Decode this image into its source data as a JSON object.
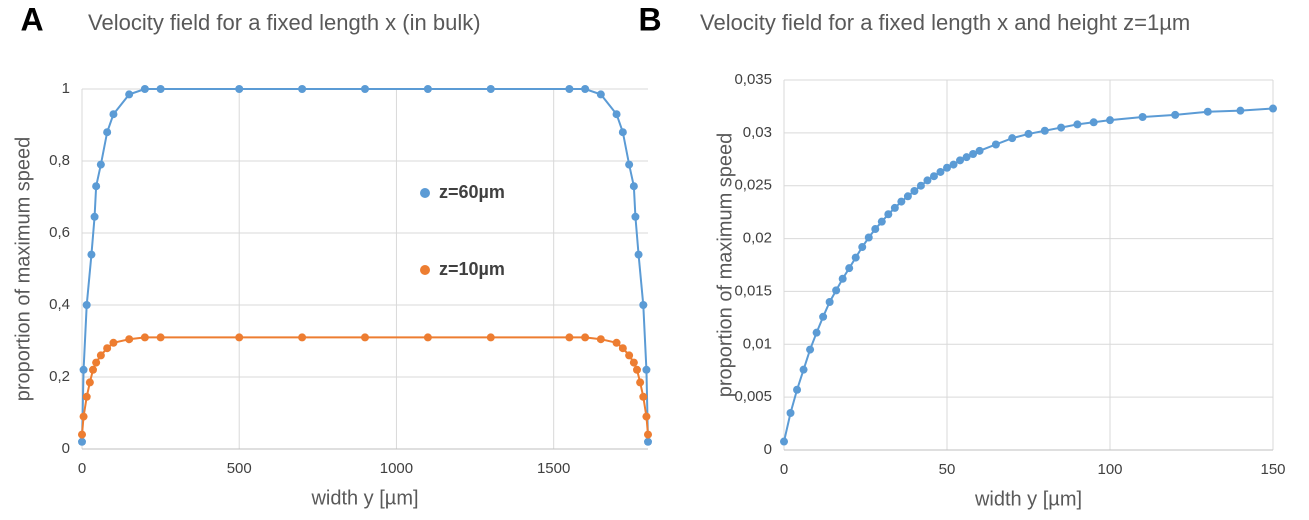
{
  "chart_data": [
    {
      "type": "line",
      "panel": "A",
      "title": "Velocity field for a fixed length x (in bulk)",
      "x_label": "width y [µm]",
      "y_label": "proportion of maximum speed",
      "xlim": [
        0,
        1800
      ],
      "xticks": [
        0,
        500,
        1000,
        1500
      ],
      "ylim": [
        0,
        1
      ],
      "yticks": [
        0,
        {
          "value": 0.2,
          "label": "0,2"
        },
        {
          "value": 0.4,
          "label": "0,4"
        },
        {
          "value": 0.6,
          "label": "0,6"
        },
        {
          "value": 0.8,
          "label": "0,8"
        },
        1
      ],
      "grid": true,
      "series": [
        {
          "name": "z=60µm",
          "color": "#5b9bd5",
          "x": [
            0,
            5,
            15,
            30,
            40,
            45,
            60,
            80,
            100,
            150,
            200,
            250,
            500,
            700,
            900,
            1100,
            1300,
            1550,
            1600,
            1650,
            1700,
            1720,
            1740,
            1755,
            1760,
            1770,
            1785,
            1795,
            1800
          ],
          "values": [
            0.02,
            0.22,
            0.4,
            0.54,
            0.645,
            0.73,
            0.79,
            0.88,
            0.93,
            0.985,
            1.0,
            1.0,
            1.0,
            1.0,
            1.0,
            1.0,
            1.0,
            1.0,
            1.0,
            0.985,
            0.93,
            0.88,
            0.79,
            0.73,
            0.645,
            0.54,
            0.4,
            0.22,
            0.02
          ]
        },
        {
          "name": "z=10µm",
          "color": "#ed7d31",
          "x": [
            0,
            5,
            15,
            25,
            35,
            45,
            60,
            80,
            100,
            150,
            200,
            250,
            500,
            700,
            900,
            1100,
            1300,
            1550,
            1600,
            1650,
            1700,
            1720,
            1740,
            1755,
            1765,
            1775,
            1785,
            1795,
            1800
          ],
          "values": [
            0.04,
            0.09,
            0.145,
            0.185,
            0.22,
            0.24,
            0.26,
            0.28,
            0.295,
            0.305,
            0.31,
            0.31,
            0.31,
            0.31,
            0.31,
            0.31,
            0.31,
            0.31,
            0.31,
            0.305,
            0.295,
            0.28,
            0.26,
            0.24,
            0.22,
            0.185,
            0.145,
            0.09,
            0.04
          ]
        }
      ]
    },
    {
      "type": "line",
      "panel": "B",
      "title": "Velocity field for a fixed length x and height z=1µm",
      "x_label": "width y [µm]",
      "y_label": "proportion of maximum speed",
      "xlim": [
        0,
        150
      ],
      "xticks": [
        0,
        50,
        100,
        150
      ],
      "ylim": [
        0,
        0.035
      ],
      "yticks": [
        0,
        {
          "value": 0.005,
          "label": "0,005"
        },
        {
          "value": 0.01,
          "label": "0,01"
        },
        {
          "value": 0.015,
          "label": "0,015"
        },
        {
          "value": 0.02,
          "label": "0,02"
        },
        {
          "value": 0.025,
          "label": "0,025"
        },
        {
          "value": 0.03,
          "label": "0,03"
        },
        {
          "value": 0.035,
          "label": "0,035"
        }
      ],
      "grid": true,
      "series": [
        {
          "color": "#5b9bd5",
          "x": [
            0,
            2,
            4,
            6,
            8,
            10,
            12,
            14,
            16,
            18,
            20,
            22,
            24,
            26,
            28,
            30,
            32,
            34,
            36,
            38,
            40,
            42,
            44,
            46,
            48,
            50,
            52,
            54,
            56,
            58,
            60,
            65,
            70,
            75,
            80,
            85,
            90,
            95,
            100,
            110,
            120,
            130,
            140,
            150
          ],
          "values": [
            0.0008,
            0.0035,
            0.0057,
            0.0076,
            0.0095,
            0.0111,
            0.0126,
            0.014,
            0.0151,
            0.0162,
            0.0172,
            0.0182,
            0.0192,
            0.0201,
            0.0209,
            0.0216,
            0.0223,
            0.0229,
            0.0235,
            0.024,
            0.0245,
            0.025,
            0.0255,
            0.0259,
            0.0263,
            0.0267,
            0.027,
            0.0274,
            0.0277,
            0.028,
            0.0283,
            0.0289,
            0.0295,
            0.0299,
            0.0302,
            0.0305,
            0.0308,
            0.031,
            0.0312,
            0.0315,
            0.0317,
            0.032,
            0.0321,
            0.0323
          ]
        }
      ]
    }
  ]
}
